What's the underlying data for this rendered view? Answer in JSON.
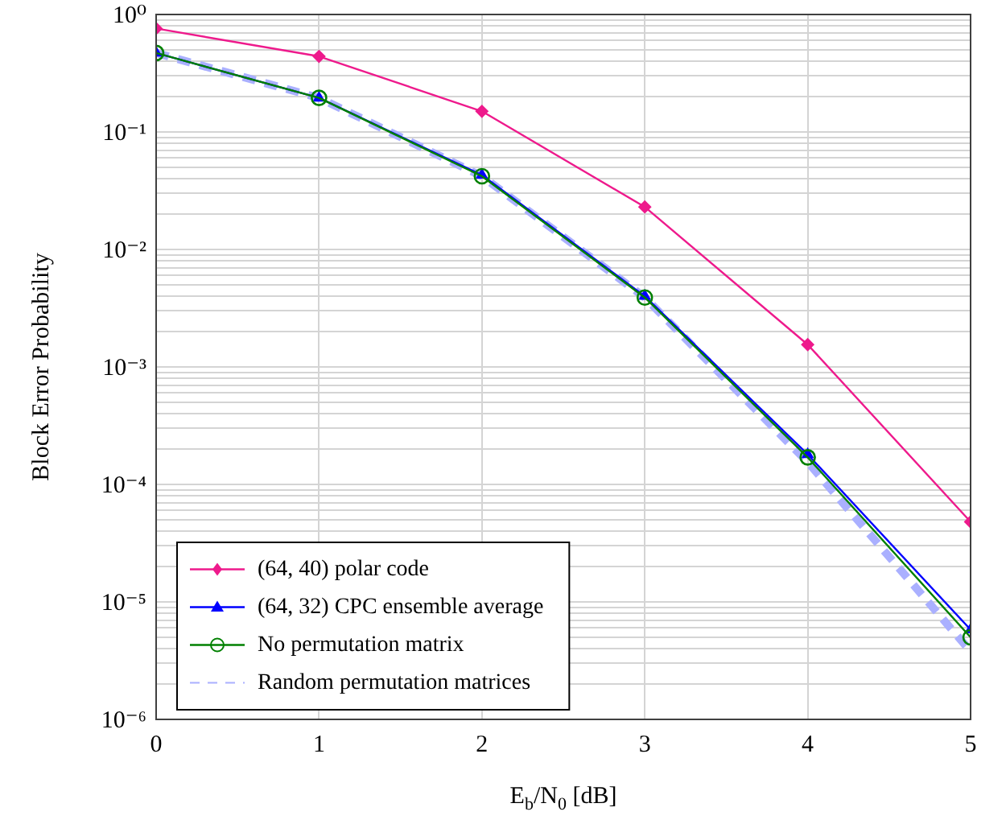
{
  "chart_data": {
    "type": "line",
    "xlabel": "E$_{b}$/N$_{0}$ [dB]",
    "ylabel": "Block Error Probability",
    "log": "y",
    "grid": true,
    "legend": "bottom left",
    "xlim": [
      0,
      5
    ],
    "xticks": [
      0,
      1,
      2,
      3,
      4,
      5
    ],
    "ylim": [
      1e-06,
      1
    ],
    "yticks": [
      {
        "value": 1e-06,
        "label": "10⁻⁶"
      },
      {
        "value": 1e-05,
        "label": "10⁻⁵"
      },
      {
        "value": 0.0001,
        "label": "10⁻⁴"
      },
      {
        "value": 0.001,
        "label": "10⁻³"
      },
      {
        "value": 0.01,
        "label": "10⁻²"
      },
      {
        "value": 0.1,
        "label": "10⁻¹"
      },
      {
        "value": 1,
        "label": "10⁰"
      },
      {
        "value": 2e-06,
        "label": null
      },
      {
        "value": 3e-06,
        "label": null
      },
      {
        "value": 4e-06,
        "label": null
      },
      {
        "value": 5e-06,
        "label": null
      },
      {
        "value": 6e-06,
        "label": null
      },
      {
        "value": 7e-06,
        "label": null
      },
      {
        "value": 8e-06,
        "label": null
      },
      {
        "value": 9e-06,
        "label": null
      },
      {
        "value": 2e-05,
        "label": null
      },
      {
        "value": 3e-05,
        "label": null
      },
      {
        "value": 4e-05,
        "label": null
      },
      {
        "value": 5e-05,
        "label": null
      },
      {
        "value": 6e-05,
        "label": null
      },
      {
        "value": 7e-05,
        "label": null
      },
      {
        "value": 8e-05,
        "label": null
      },
      {
        "value": 9e-05,
        "label": null
      },
      {
        "value": 0.0002,
        "label": null
      },
      {
        "value": 0.0003,
        "label": null
      },
      {
        "value": 0.0004,
        "label": null
      },
      {
        "value": 0.0005,
        "label": null
      },
      {
        "value": 0.0006,
        "label": null
      },
      {
        "value": 0.0007,
        "label": null
      },
      {
        "value": 0.0008,
        "label": null
      },
      {
        "value": 0.0009,
        "label": null
      },
      {
        "value": 0.002,
        "label": null
      },
      {
        "value": 0.003,
        "label": null
      },
      {
        "value": 0.004,
        "label": null
      },
      {
        "value": 0.005,
        "label": null
      },
      {
        "value": 0.006,
        "label": null
      },
      {
        "value": 0.007,
        "label": null
      },
      {
        "value": 0.008,
        "label": null
      },
      {
        "value": 0.009,
        "label": null
      },
      {
        "value": 0.02,
        "label": null
      },
      {
        "value": 0.03,
        "label": null
      },
      {
        "value": 0.04,
        "label": null
      },
      {
        "value": 0.05,
        "label": null
      },
      {
        "value": 0.06,
        "label": null
      },
      {
        "value": 0.07,
        "label": null
      },
      {
        "value": 0.08,
        "label": null
      },
      {
        "value": 0.09,
        "label": null
      },
      {
        "value": 0.2,
        "label": null
      },
      {
        "value": 0.3,
        "label": null
      },
      {
        "value": 0.4,
        "label": null
      },
      {
        "value": 0.5,
        "label": null
      },
      {
        "value": 0.6,
        "label": null
      },
      {
        "value": 0.7,
        "label": null
      },
      {
        "value": 0.8,
        "label": null
      },
      {
        "value": 0.9,
        "label": null
      }
    ],
    "x": [
      0,
      1,
      2,
      3,
      4,
      5
    ],
    "series": [
      {
        "name": "(64, 40) polar code",
        "color": "#ee1a8c",
        "marker": "diamond",
        "line_style": "solid",
        "values": [
          0.76,
          0.44,
          0.15,
          0.023,
          0.00155,
          4.8e-05
        ]
      },
      {
        "name": "(64, 32) CPC ensemble average",
        "color": "#0000ff",
        "marker": "triangle",
        "line_style": "solid",
        "values": [
          0.47,
          0.195,
          0.043,
          0.004,
          0.00018,
          5.8e-06
        ]
      },
      {
        "name": "No permutation matrix",
        "color": "#008000",
        "marker": "circle",
        "line_style": "solid",
        "values": [
          0.47,
          0.195,
          0.042,
          0.0039,
          0.00017,
          5e-06
        ]
      },
      {
        "name": "Random permutation matrices",
        "color": "#aab0ff",
        "marker": "none",
        "line_style": "dashed",
        "values": [
          0.47,
          0.195,
          0.042,
          0.0039,
          0.000155,
          3.8e-06
        ]
      }
    ]
  }
}
